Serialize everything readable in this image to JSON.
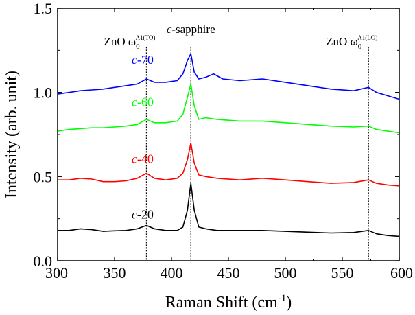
{
  "chart_data": {
    "type": "line",
    "xlabel": "Raman Shift (cm",
    "xlabel_sup": "-1",
    "xlabel_close": ")",
    "ylabel": "Intensity (arb. unit)",
    "xlim": [
      300,
      600
    ],
    "ylim": [
      0.0,
      1.5
    ],
    "x_ticks": [
      300,
      350,
      400,
      450,
      500,
      550,
      600
    ],
    "x_tick_labels": [
      "300",
      "350",
      "400",
      "450",
      "500",
      "550",
      "600"
    ],
    "y_ticks": [
      0.0,
      0.5,
      1.0,
      1.5
    ],
    "y_tick_labels": [
      "0.0",
      "0.5",
      "1.0",
      "1.5"
    ],
    "reference_lines": [
      {
        "x": 378,
        "label_main": "ZnO ω",
        "label_sub": "0",
        "label_sup": "A1(TO)"
      },
      {
        "x": 417,
        "label_italic": "c",
        "label_rest": "-sapphire"
      },
      {
        "x": 573,
        "label_main": "ZnO ω",
        "label_sub": "0",
        "label_sup": "A1(LO)"
      }
    ],
    "series": [
      {
        "name": "c-20",
        "label_italic": "c",
        "label_rest": "-20",
        "color": "#000000",
        "label_x": 365,
        "label_y": 0.25,
        "points": [
          [
            300,
            0.18
          ],
          [
            310,
            0.18
          ],
          [
            320,
            0.19
          ],
          [
            330,
            0.185
          ],
          [
            340,
            0.175
          ],
          [
            350,
            0.178
          ],
          [
            360,
            0.18
          ],
          [
            370,
            0.19
          ],
          [
            378,
            0.21
          ],
          [
            385,
            0.19
          ],
          [
            395,
            0.18
          ],
          [
            405,
            0.18
          ],
          [
            410,
            0.2
          ],
          [
            414,
            0.3
          ],
          [
            417,
            0.46
          ],
          [
            420,
            0.3
          ],
          [
            424,
            0.2
          ],
          [
            430,
            0.19
          ],
          [
            440,
            0.18
          ],
          [
            460,
            0.18
          ],
          [
            480,
            0.18
          ],
          [
            500,
            0.175
          ],
          [
            520,
            0.17
          ],
          [
            540,
            0.165
          ],
          [
            560,
            0.168
          ],
          [
            573,
            0.18
          ],
          [
            580,
            0.16
          ],
          [
            590,
            0.15
          ],
          [
            600,
            0.145
          ]
        ]
      },
      {
        "name": "c-40",
        "label_italic": "c",
        "label_rest": "-40",
        "color": "#ff0000",
        "label_x": 365,
        "label_y": 0.58,
        "points": [
          [
            300,
            0.48
          ],
          [
            310,
            0.48
          ],
          [
            320,
            0.49
          ],
          [
            330,
            0.485
          ],
          [
            340,
            0.47
          ],
          [
            350,
            0.47
          ],
          [
            360,
            0.475
          ],
          [
            370,
            0.49
          ],
          [
            378,
            0.52
          ],
          [
            385,
            0.49
          ],
          [
            395,
            0.48
          ],
          [
            405,
            0.49
          ],
          [
            410,
            0.52
          ],
          [
            414,
            0.6
          ],
          [
            417,
            0.7
          ],
          [
            420,
            0.58
          ],
          [
            424,
            0.51
          ],
          [
            430,
            0.5
          ],
          [
            440,
            0.49
          ],
          [
            460,
            0.48
          ],
          [
            480,
            0.49
          ],
          [
            500,
            0.48
          ],
          [
            520,
            0.47
          ],
          [
            540,
            0.46
          ],
          [
            560,
            0.465
          ],
          [
            573,
            0.48
          ],
          [
            580,
            0.46
          ],
          [
            590,
            0.45
          ],
          [
            600,
            0.445
          ]
        ]
      },
      {
        "name": "c-60",
        "label_italic": "c",
        "label_rest": "-60",
        "color": "#00ff00",
        "label_x": 365,
        "label_y": 0.92,
        "points": [
          [
            300,
            0.77
          ],
          [
            310,
            0.78
          ],
          [
            320,
            0.785
          ],
          [
            330,
            0.79
          ],
          [
            340,
            0.79
          ],
          [
            350,
            0.795
          ],
          [
            360,
            0.8
          ],
          [
            370,
            0.81
          ],
          [
            378,
            0.84
          ],
          [
            385,
            0.82
          ],
          [
            395,
            0.82
          ],
          [
            405,
            0.83
          ],
          [
            410,
            0.87
          ],
          [
            414,
            0.97
          ],
          [
            417,
            1.05
          ],
          [
            420,
            0.92
          ],
          [
            424,
            0.84
          ],
          [
            430,
            0.85
          ],
          [
            440,
            0.84
          ],
          [
            460,
            0.83
          ],
          [
            480,
            0.83
          ],
          [
            500,
            0.82
          ],
          [
            520,
            0.81
          ],
          [
            540,
            0.8
          ],
          [
            560,
            0.795
          ],
          [
            573,
            0.8
          ],
          [
            580,
            0.78
          ],
          [
            590,
            0.77
          ],
          [
            600,
            0.76
          ]
        ]
      },
      {
        "name": "c-70",
        "label_italic": "c",
        "label_rest": "-70",
        "color": "#0000ff",
        "label_x": 365,
        "label_y": 1.17,
        "points": [
          [
            300,
            0.99
          ],
          [
            310,
            1.0
          ],
          [
            320,
            1.01
          ],
          [
            330,
            1.015
          ],
          [
            340,
            1.02
          ],
          [
            350,
            1.03
          ],
          [
            360,
            1.04
          ],
          [
            370,
            1.05
          ],
          [
            378,
            1.08
          ],
          [
            385,
            1.06
          ],
          [
            395,
            1.06
          ],
          [
            405,
            1.07
          ],
          [
            410,
            1.11
          ],
          [
            414,
            1.19
          ],
          [
            417,
            1.23
          ],
          [
            420,
            1.12
          ],
          [
            424,
            1.08
          ],
          [
            430,
            1.09
          ],
          [
            437,
            1.11
          ],
          [
            445,
            1.08
          ],
          [
            460,
            1.07
          ],
          [
            480,
            1.08
          ],
          [
            500,
            1.06
          ],
          [
            520,
            1.04
          ],
          [
            540,
            1.02
          ],
          [
            560,
            1.01
          ],
          [
            573,
            1.03
          ],
          [
            580,
            1.0
          ],
          [
            590,
            0.98
          ],
          [
            600,
            0.96
          ]
        ]
      }
    ]
  }
}
